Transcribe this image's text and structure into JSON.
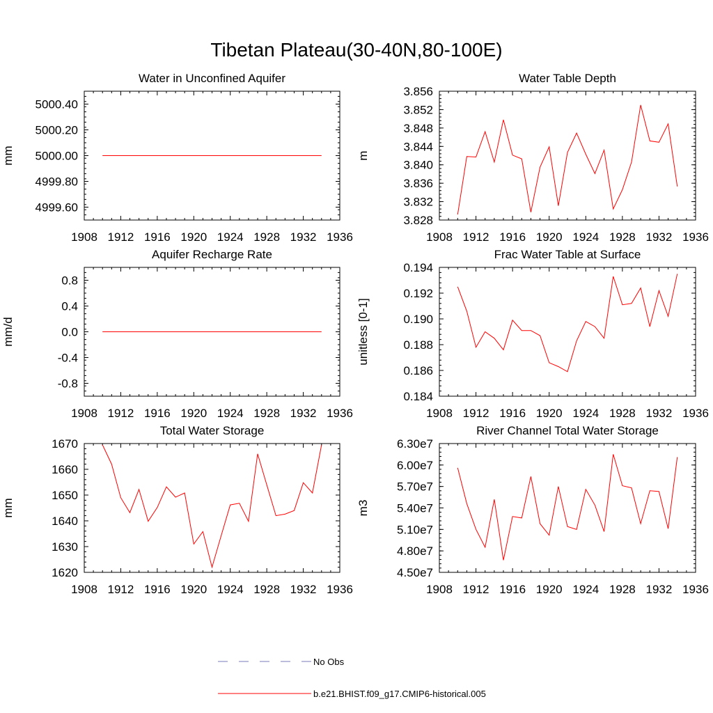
{
  "figure": {
    "title": "Tibetan Plateau(30-40N,80-100E)"
  },
  "legend": {
    "items": [
      {
        "label": "No Obs",
        "color": "#7a7ab8",
        "dash": true
      },
      {
        "label": "b.e21.BHIST.f09_g17.CMIP6-historical.005",
        "color": "#ff0000",
        "dash": false
      }
    ]
  },
  "chart_data": [
    {
      "type": "line",
      "title": "Water in Unconfined Aquifer",
      "ylabel": "mm",
      "xlim": [
        1908,
        1936
      ],
      "ylim": [
        4999.5,
        5000.5
      ],
      "xticks": [
        "1908",
        "1912",
        "1916",
        "1920",
        "1924",
        "1928",
        "1932",
        "1936"
      ],
      "yticks": [
        {
          "v": 4999.6,
          "label": "4999.60"
        },
        {
          "v": 4999.8,
          "label": "4999.80"
        },
        {
          "v": 5000.0,
          "label": "5000.00"
        },
        {
          "v": 5000.2,
          "label": "5000.20"
        },
        {
          "v": 5000.4,
          "label": "5000.40"
        }
      ],
      "x": [
        1910,
        1911,
        1912,
        1913,
        1914,
        1915,
        1916,
        1917,
        1918,
        1919,
        1920,
        1921,
        1922,
        1923,
        1924,
        1925,
        1926,
        1927,
        1928,
        1929,
        1930,
        1931,
        1932,
        1933,
        1934
      ],
      "series": [
        {
          "name": "b.e21.BHIST.f09_g17.CMIP6-historical.005",
          "color": "#ff0000",
          "values": [
            5000,
            5000,
            5000,
            5000,
            5000,
            5000,
            5000,
            5000,
            5000,
            5000,
            5000,
            5000,
            5000,
            5000,
            5000,
            5000,
            5000,
            5000,
            5000,
            5000,
            5000,
            5000,
            5000,
            5000,
            5000
          ]
        }
      ]
    },
    {
      "type": "line",
      "title": "Water Table Depth",
      "ylabel": "m",
      "xlim": [
        1908,
        1936
      ],
      "ylim": [
        3.828,
        3.856
      ],
      "xticks": [
        "1908",
        "1912",
        "1916",
        "1920",
        "1924",
        "1928",
        "1932",
        "1936"
      ],
      "yticks": [
        {
          "v": 3.828,
          "label": "3.828"
        },
        {
          "v": 3.832,
          "label": "3.832"
        },
        {
          "v": 3.836,
          "label": "3.836"
        },
        {
          "v": 3.84,
          "label": "3.840"
        },
        {
          "v": 3.844,
          "label": "3.844"
        },
        {
          "v": 3.848,
          "label": "3.848"
        },
        {
          "v": 3.852,
          "label": "3.852"
        },
        {
          "v": 3.856,
          "label": "3.856"
        }
      ],
      "x": [
        1910,
        1911,
        1912,
        1913,
        1914,
        1915,
        1916,
        1917,
        1918,
        1919,
        1920,
        1921,
        1922,
        1923,
        1924,
        1925,
        1926,
        1927,
        1928,
        1929,
        1930,
        1931,
        1932,
        1933,
        1934
      ],
      "series": [
        {
          "name": "b.e21.BHIST.f09_g17.CMIP6-historical.005",
          "color": "#ff0000",
          "values": [
            3.8292,
            3.8418,
            3.8417,
            3.8472,
            3.8406,
            3.8498,
            3.8421,
            3.8413,
            3.8297,
            3.8395,
            3.8439,
            3.8311,
            3.8427,
            3.8469,
            3.8423,
            3.8381,
            3.8432,
            3.8304,
            3.8346,
            3.8406,
            3.853,
            3.8452,
            3.8449,
            3.8489,
            3.8353
          ]
        }
      ]
    },
    {
      "type": "line",
      "title": "Aquifer Recharge Rate",
      "ylabel": "mm/d",
      "xlim": [
        1908,
        1936
      ],
      "ylim": [
        -1.0,
        1.0
      ],
      "xticks": [
        "1908",
        "1912",
        "1916",
        "1920",
        "1924",
        "1928",
        "1932",
        "1936"
      ],
      "yticks": [
        {
          "v": -0.8,
          "label": "-0.8"
        },
        {
          "v": -0.4,
          "label": "-0.4"
        },
        {
          "v": 0.0,
          "label": "0.0"
        },
        {
          "v": 0.4,
          "label": "0.4"
        },
        {
          "v": 0.8,
          "label": "0.8"
        }
      ],
      "x": [
        1910,
        1911,
        1912,
        1913,
        1914,
        1915,
        1916,
        1917,
        1918,
        1919,
        1920,
        1921,
        1922,
        1923,
        1924,
        1925,
        1926,
        1927,
        1928,
        1929,
        1930,
        1931,
        1932,
        1933,
        1934
      ],
      "series": [
        {
          "name": "b.e21.BHIST.f09_g17.CMIP6-historical.005",
          "color": "#ff0000",
          "values": [
            0,
            0,
            0,
            0,
            0,
            0,
            0,
            0,
            0,
            0,
            0,
            0,
            0,
            0,
            0,
            0,
            0,
            0,
            0,
            0,
            0,
            0,
            0,
            0,
            0
          ]
        }
      ]
    },
    {
      "type": "line",
      "title": "Frac Water Table at Surface",
      "ylabel": "unitless [0-1]",
      "xlim": [
        1908,
        1936
      ],
      "ylim": [
        0.184,
        0.194
      ],
      "xticks": [
        "1908",
        "1912",
        "1916",
        "1920",
        "1924",
        "1928",
        "1932",
        "1936"
      ],
      "yticks": [
        {
          "v": 0.184,
          "label": "0.184"
        },
        {
          "v": 0.186,
          "label": "0.186"
        },
        {
          "v": 0.188,
          "label": "0.188"
        },
        {
          "v": 0.19,
          "label": "0.190"
        },
        {
          "v": 0.192,
          "label": "0.192"
        },
        {
          "v": 0.194,
          "label": "0.194"
        }
      ],
      "x": [
        1910,
        1911,
        1912,
        1913,
        1914,
        1915,
        1916,
        1917,
        1918,
        1919,
        1920,
        1921,
        1922,
        1923,
        1924,
        1925,
        1926,
        1927,
        1928,
        1929,
        1930,
        1931,
        1932,
        1933,
        1934
      ],
      "series": [
        {
          "name": "b.e21.BHIST.f09_g17.CMIP6-historical.005",
          "color": "#ff0000",
          "values": [
            0.1925,
            0.1906,
            0.1878,
            0.189,
            0.1885,
            0.1876,
            0.1899,
            0.1891,
            0.1891,
            0.1887,
            0.1866,
            0.1863,
            0.1859,
            0.1883,
            0.1898,
            0.1894,
            0.1885,
            0.1933,
            0.1911,
            0.1912,
            0.1924,
            0.1894,
            0.1922,
            0.1902,
            0.1935
          ]
        }
      ]
    },
    {
      "type": "line",
      "title": "Total Water Storage",
      "ylabel": "mm",
      "xlim": [
        1908,
        1936
      ],
      "ylim": [
        1620,
        1670
      ],
      "xticks": [
        "1908",
        "1912",
        "1916",
        "1920",
        "1924",
        "1928",
        "1932",
        "1936"
      ],
      "yticks": [
        {
          "v": 1620,
          "label": "1620"
        },
        {
          "v": 1630,
          "label": "1630"
        },
        {
          "v": 1640,
          "label": "1640"
        },
        {
          "v": 1650,
          "label": "1650"
        },
        {
          "v": 1660,
          "label": "1660"
        },
        {
          "v": 1670,
          "label": "1670"
        }
      ],
      "x": [
        1910,
        1911,
        1912,
        1913,
        1914,
        1915,
        1916,
        1917,
        1918,
        1919,
        1920,
        1921,
        1922,
        1923,
        1924,
        1925,
        1926,
        1927,
        1928,
        1929,
        1930,
        1931,
        1932,
        1933,
        1934
      ],
      "series": [
        {
          "name": "b.e21.BHIST.f09_g17.CMIP6-historical.005",
          "color": "#ff0000",
          "values": [
            1669.5,
            1662,
            1649,
            1643.2,
            1652.2,
            1639.8,
            1645.2,
            1653.2,
            1649.2,
            1650.8,
            1631,
            1635.8,
            1622,
            1634.2,
            1646.2,
            1646.8,
            1639.8,
            1666,
            1654,
            1642,
            1642.6,
            1644,
            1654.8,
            1650.8,
            1669.5
          ]
        }
      ]
    },
    {
      "type": "line",
      "title": "River Channel Total Water Storage",
      "ylabel": "m3",
      "xlim": [
        1908,
        1936
      ],
      "ylim": [
        45000000,
        63000000
      ],
      "xticks": [
        "1908",
        "1912",
        "1916",
        "1920",
        "1924",
        "1928",
        "1932",
        "1936"
      ],
      "yticks": [
        {
          "v": 45000000,
          "label": "4.50e7"
        },
        {
          "v": 48000000,
          "label": "4.80e7"
        },
        {
          "v": 51000000,
          "label": "5.10e7"
        },
        {
          "v": 54000000,
          "label": "5.40e7"
        },
        {
          "v": 57000000,
          "label": "5.70e7"
        },
        {
          "v": 60000000,
          "label": "6.00e7"
        },
        {
          "v": 63000000,
          "label": "6.30e7"
        }
      ],
      "x": [
        1910,
        1911,
        1912,
        1913,
        1914,
        1915,
        1916,
        1917,
        1918,
        1919,
        1920,
        1921,
        1922,
        1923,
        1924,
        1925,
        1926,
        1927,
        1928,
        1929,
        1930,
        1931,
        1932,
        1933,
        1934
      ],
      "series": [
        {
          "name": "b.e21.BHIST.f09_g17.CMIP6-historical.005",
          "color": "#ff0000",
          "values": [
            59600000,
            54600000,
            51000000,
            48500000,
            55200000,
            46700000,
            52800000,
            52600000,
            58400000,
            51800000,
            50200000,
            57000000,
            51400000,
            51000000,
            56600000,
            54400000,
            50700000,
            61500000,
            57100000,
            56800000,
            51800000,
            56400000,
            56300000,
            51100000,
            61100000
          ]
        }
      ]
    }
  ]
}
